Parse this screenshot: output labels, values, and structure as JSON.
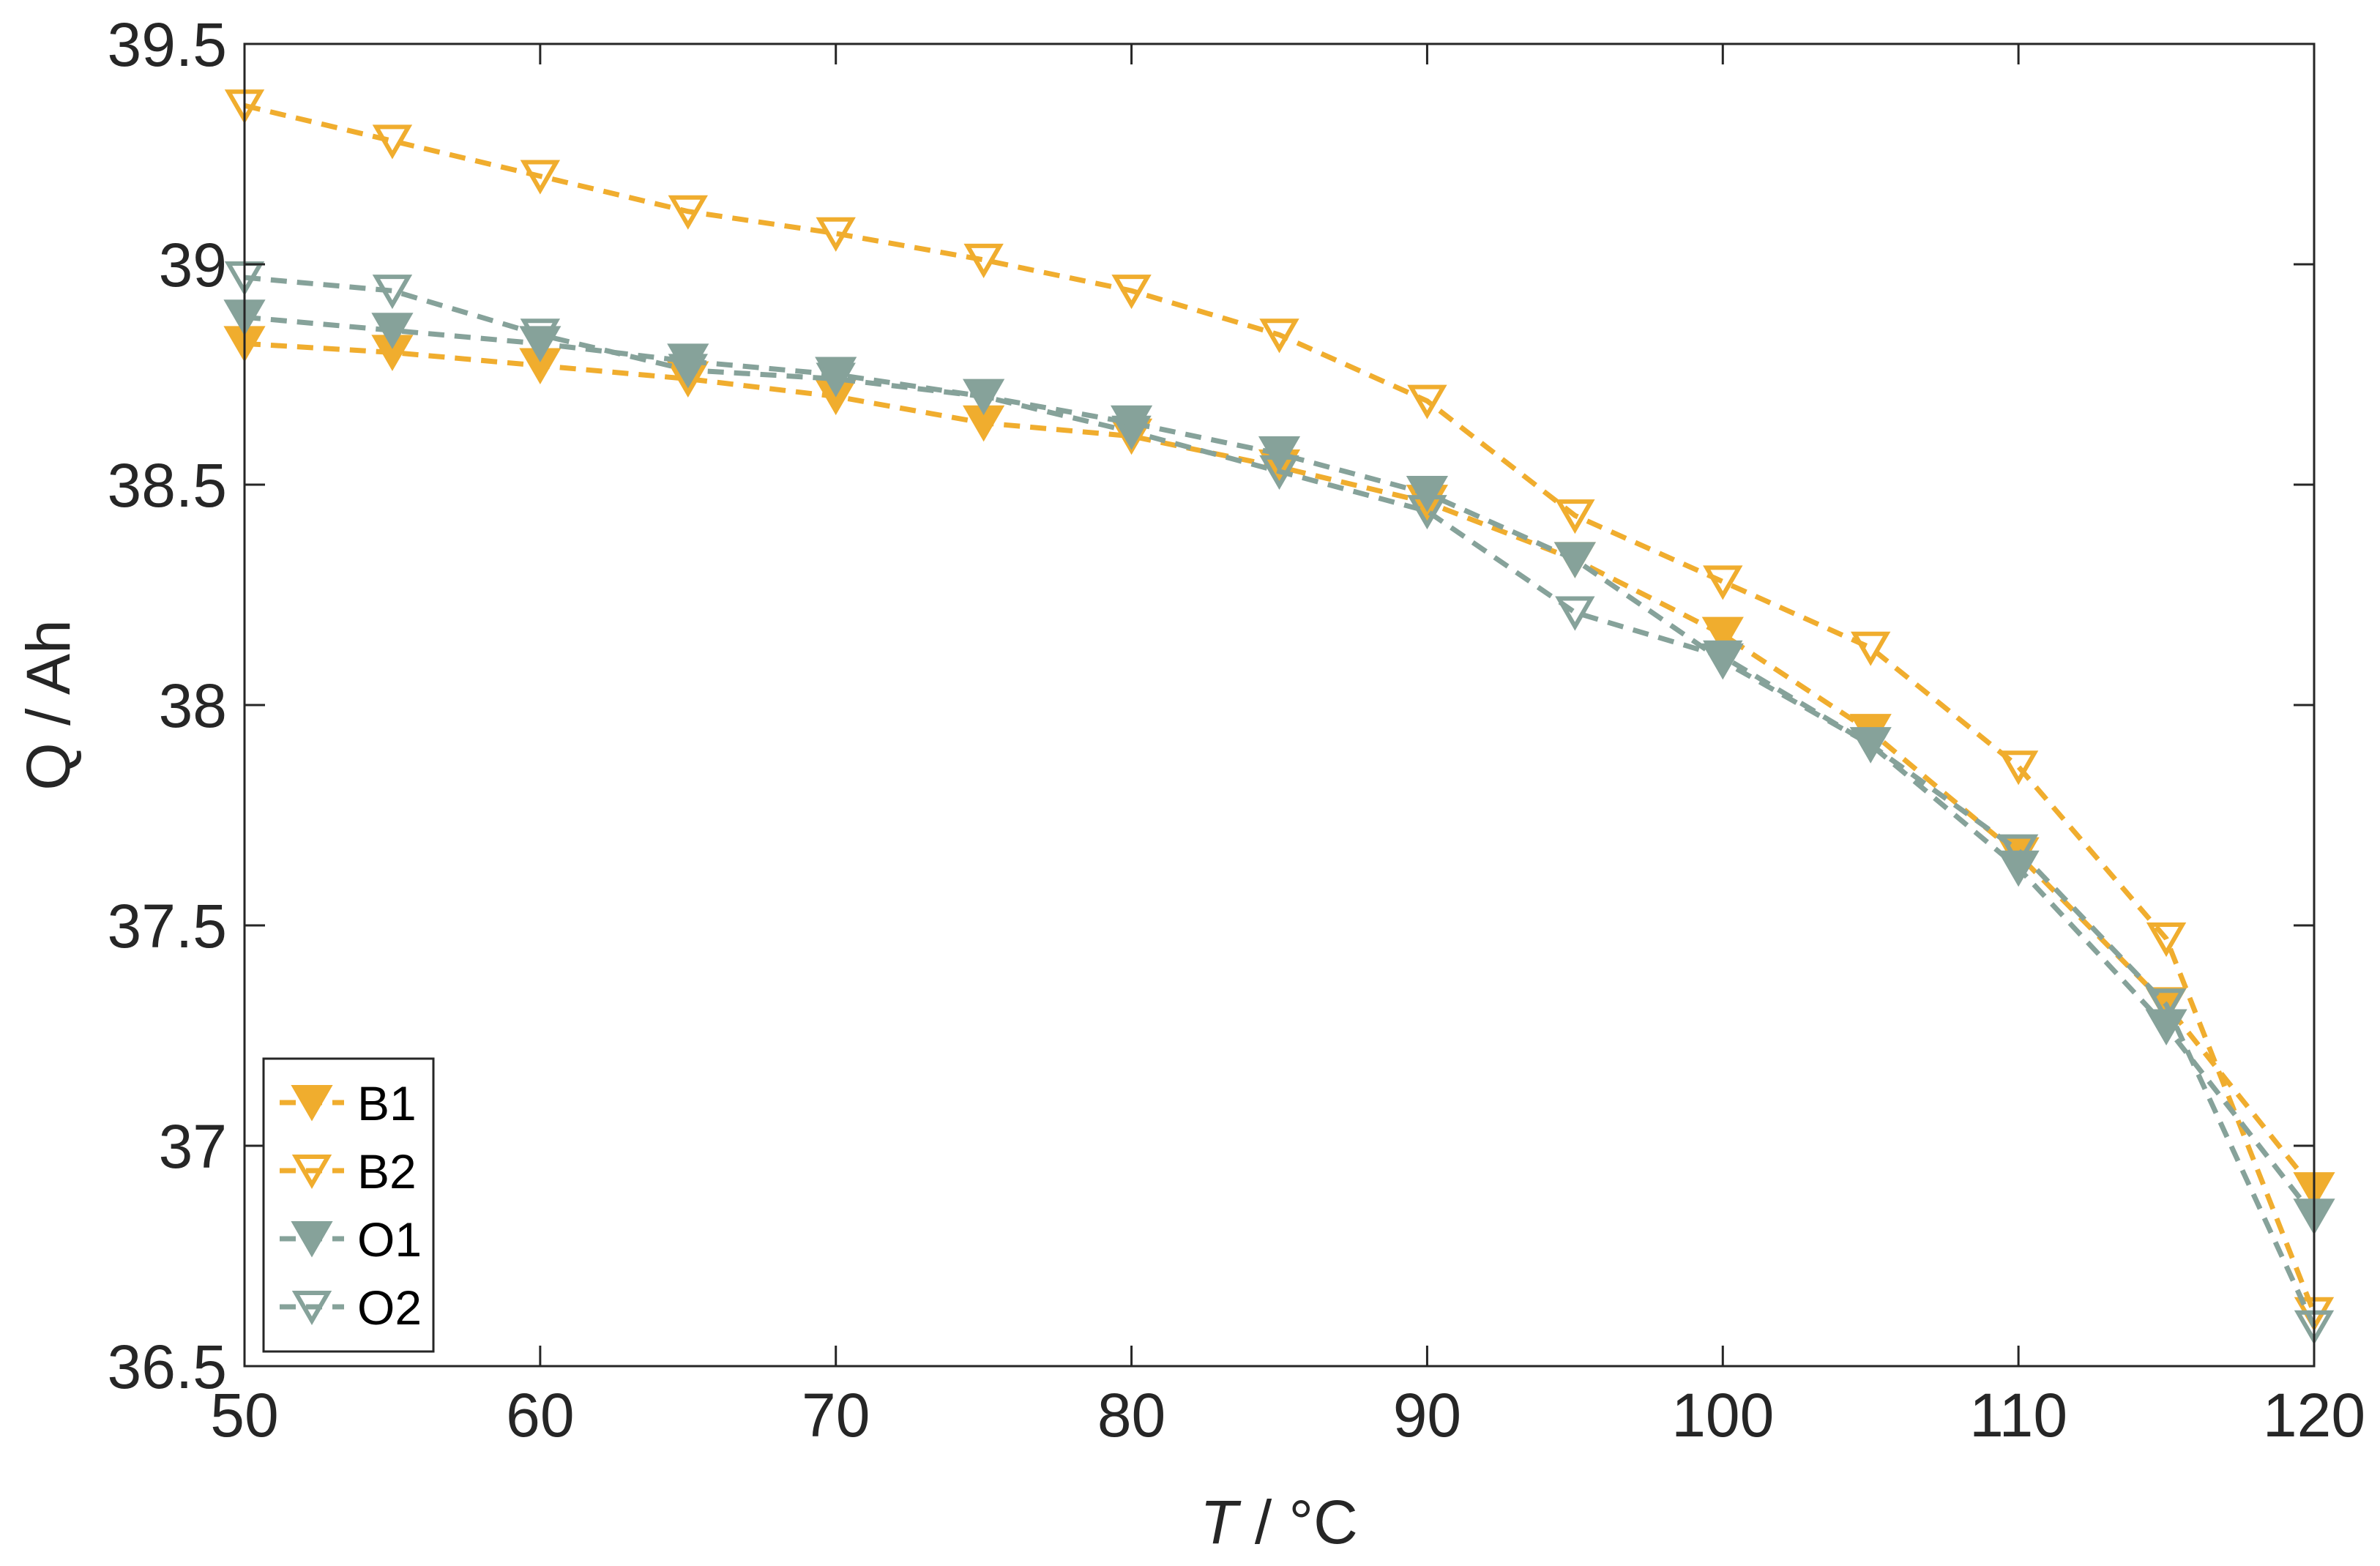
{
  "chart_data": {
    "type": "line",
    "title": "",
    "xlabel_var": "T",
    "xlabel_rest": " / °C",
    "ylabel": "Q / Ah",
    "xlim": [
      50,
      120
    ],
    "ylim": [
      36.5,
      39.5
    ],
    "xticks": [
      50,
      60,
      70,
      80,
      90,
      100,
      110,
      120
    ],
    "yticks": [
      36.5,
      37,
      37.5,
      38,
      38.5,
      39,
      39.5
    ],
    "xtick_labels": [
      "50",
      "60",
      "70",
      "80",
      "90",
      "100",
      "110",
      "120"
    ],
    "ytick_labels": [
      "36.5",
      "37",
      "37.5",
      "38",
      "38.5",
      "39",
      "39.5"
    ],
    "grid": false,
    "legend_position": "bottom-left",
    "x": [
      50,
      55,
      60,
      65,
      70,
      75,
      80,
      85,
      90,
      95,
      100,
      105,
      110,
      115,
      120
    ],
    "series": [
      {
        "name": "B1",
        "color": "#f0ad2e",
        "marker": "triangle-down-filled",
        "values": [
          38.82,
          38.8,
          38.77,
          38.74,
          38.7,
          38.64,
          38.61,
          38.54,
          38.46,
          38.33,
          38.16,
          37.94,
          37.66,
          37.32,
          36.9
        ]
      },
      {
        "name": "B2",
        "color": "#f0ad2e",
        "marker": "triangle-down-open",
        "values": [
          39.36,
          39.28,
          39.2,
          39.12,
          39.07,
          39.01,
          38.94,
          38.84,
          38.69,
          38.43,
          38.28,
          38.13,
          37.86,
          37.47,
          36.62
        ]
      },
      {
        "name": "O1",
        "color": "#86a29a",
        "marker": "triangle-down-filled",
        "values": [
          38.88,
          38.85,
          38.82,
          38.78,
          38.75,
          38.7,
          38.64,
          38.57,
          38.48,
          38.33,
          38.1,
          37.91,
          37.63,
          37.27,
          36.84
        ]
      },
      {
        "name": "O2",
        "color": "#86a29a",
        "marker": "triangle-down-open",
        "values": [
          38.97,
          38.94,
          38.84,
          38.76,
          38.74,
          38.7,
          38.62,
          38.53,
          38.44,
          38.21,
          38.11,
          37.91,
          37.67,
          37.32,
          36.59
        ]
      }
    ]
  }
}
